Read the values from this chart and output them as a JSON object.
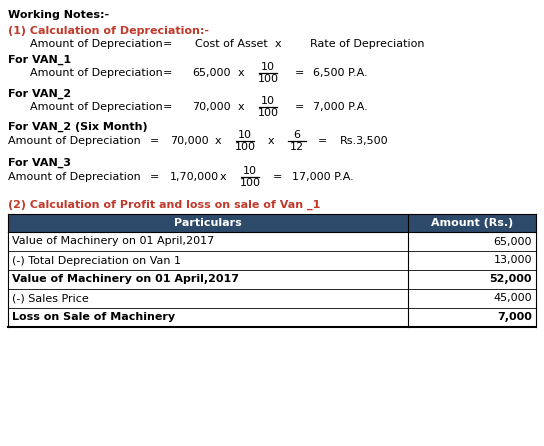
{
  "title": "Working Notes:-",
  "section1_title": "(1) Calculation of Depreciation:-",
  "van1_header": "For VAN_1",
  "van2_header": "For VAN_2",
  "van2six_header": "For VAN_2 (Six Month)",
  "van3_header": "For VAN_3",
  "section2_title": "(2) Calculation of Profit and loss on sale of Van _1",
  "table_headers": [
    "Particulars",
    "Amount (Rs.)"
  ],
  "table_rows": [
    [
      "Value of Machinery on 01 April,2017",
      "65,000",
      false
    ],
    [
      "(-) Total Depreciation on Van 1",
      "13,000",
      false
    ],
    [
      "Value of Machinery on 01 April,2017",
      "52,000",
      true
    ],
    [
      "(-) Sales Price",
      "45,000",
      false
    ],
    [
      "Loss on Sale of Machinery",
      "7,000",
      true
    ]
  ],
  "header_bg": "#2d4a6b",
  "header_fg": "#ffffff",
  "red_color": "#c0392b",
  "black_color": "#000000",
  "fs": 8.0,
  "fs_small": 7.5
}
